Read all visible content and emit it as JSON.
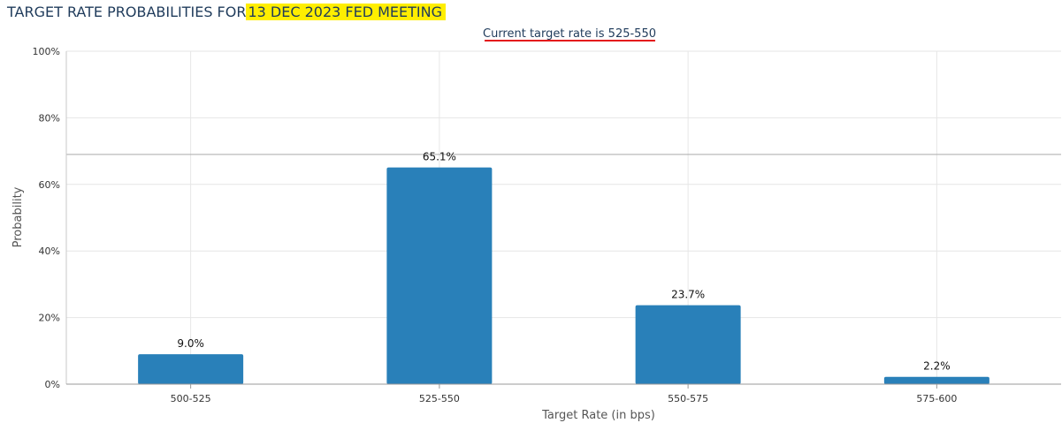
{
  "header": {
    "title_prefix": "TARGET RATE PROBABILITIES FOR",
    "title_highlight": "13 DEC 2023 FED MEETING"
  },
  "chart_data": {
    "type": "bar",
    "subtitle": "Current target rate is 525-550",
    "categories": [
      "500-525",
      "525-550",
      "550-575",
      "575-600"
    ],
    "values": [
      9.0,
      65.1,
      23.7,
      2.2
    ],
    "value_labels": [
      "9.0%",
      "65.1%",
      "23.7%",
      "2.2%"
    ],
    "xlabel": "Target Rate (in bps)",
    "ylabel": "Probability",
    "ylim": [
      0,
      100
    ],
    "yticks": [
      0,
      20,
      40,
      60,
      80,
      100
    ],
    "ytick_labels": [
      "0%",
      "20%",
      "40%",
      "60%",
      "80%",
      "100%"
    ],
    "reference_line": 69,
    "grid": true,
    "colors": {
      "bar": "#2980b9",
      "subtitle_underline": "#e41a1c",
      "title_highlight": "#ffee00",
      "grid": "#e6e6e6"
    }
  }
}
